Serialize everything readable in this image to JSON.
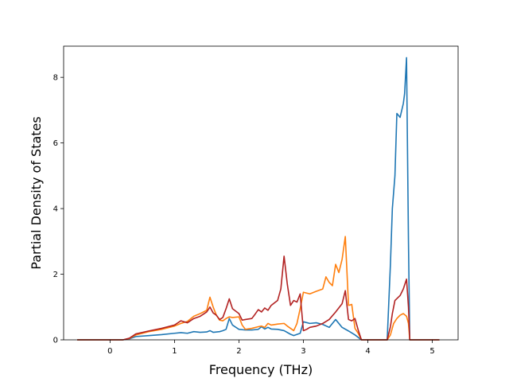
{
  "chart_data": {
    "type": "line",
    "title": "",
    "xlabel": "Frequency (THz)",
    "ylabel": "Partial Density of States",
    "xlim": [
      -0.72,
      5.4
    ],
    "ylim": [
      0,
      8.95
    ],
    "xticks": [
      0,
      1,
      2,
      3,
      4,
      5
    ],
    "yticks": [
      0,
      2,
      4,
      6,
      8
    ],
    "grid": false,
    "legend": "none",
    "series": [
      {
        "color": "#1f77b4",
        "points": [
          [
            -0.5,
            0
          ],
          [
            0.2,
            0
          ],
          [
            0.3,
            0.03
          ],
          [
            0.4,
            0.1
          ],
          [
            0.6,
            0.13
          ],
          [
            0.8,
            0.16
          ],
          [
            1.0,
            0.2
          ],
          [
            1.1,
            0.22
          ],
          [
            1.2,
            0.2
          ],
          [
            1.3,
            0.25
          ],
          [
            1.4,
            0.23
          ],
          [
            1.5,
            0.24
          ],
          [
            1.55,
            0.28
          ],
          [
            1.6,
            0.23
          ],
          [
            1.7,
            0.25
          ],
          [
            1.75,
            0.28
          ],
          [
            1.8,
            0.32
          ],
          [
            1.85,
            0.65
          ],
          [
            1.9,
            0.45
          ],
          [
            2.0,
            0.32
          ],
          [
            2.1,
            0.3
          ],
          [
            2.2,
            0.3
          ],
          [
            2.3,
            0.32
          ],
          [
            2.35,
            0.4
          ],
          [
            2.4,
            0.33
          ],
          [
            2.45,
            0.38
          ],
          [
            2.5,
            0.33
          ],
          [
            2.6,
            0.32
          ],
          [
            2.7,
            0.28
          ],
          [
            2.8,
            0.17
          ],
          [
            2.85,
            0.13
          ],
          [
            2.95,
            0.2
          ],
          [
            3.0,
            0.55
          ],
          [
            3.1,
            0.5
          ],
          [
            3.2,
            0.52
          ],
          [
            3.3,
            0.47
          ],
          [
            3.4,
            0.38
          ],
          [
            3.5,
            0.62
          ],
          [
            3.6,
            0.38
          ],
          [
            3.7,
            0.27
          ],
          [
            3.8,
            0.15
          ],
          [
            3.9,
            0
          ],
          [
            4.3,
            0
          ],
          [
            4.35,
            2.3
          ],
          [
            4.38,
            4.0
          ],
          [
            4.42,
            5.0
          ],
          [
            4.45,
            6.9
          ],
          [
            4.5,
            6.78
          ],
          [
            4.55,
            7.2
          ],
          [
            4.57,
            7.5
          ],
          [
            4.6,
            8.6
          ],
          [
            4.63,
            3.0
          ],
          [
            4.65,
            0
          ],
          [
            5.1,
            0
          ]
        ]
      },
      {
        "color": "#ff7f0e",
        "points": [
          [
            -0.5,
            0
          ],
          [
            0.2,
            0
          ],
          [
            0.3,
            0.04
          ],
          [
            0.4,
            0.15
          ],
          [
            0.6,
            0.25
          ],
          [
            0.8,
            0.32
          ],
          [
            1.0,
            0.42
          ],
          [
            1.1,
            0.5
          ],
          [
            1.2,
            0.56
          ],
          [
            1.3,
            0.72
          ],
          [
            1.4,
            0.8
          ],
          [
            1.5,
            0.9
          ],
          [
            1.55,
            1.3
          ],
          [
            1.6,
            1.0
          ],
          [
            1.65,
            0.75
          ],
          [
            1.7,
            0.6
          ],
          [
            1.75,
            0.58
          ],
          [
            1.8,
            0.65
          ],
          [
            1.85,
            0.7
          ],
          [
            1.9,
            0.68
          ],
          [
            2.0,
            0.7
          ],
          [
            2.05,
            0.45
          ],
          [
            2.1,
            0.32
          ],
          [
            2.2,
            0.35
          ],
          [
            2.3,
            0.4
          ],
          [
            2.35,
            0.42
          ],
          [
            2.4,
            0.38
          ],
          [
            2.45,
            0.5
          ],
          [
            2.5,
            0.45
          ],
          [
            2.6,
            0.48
          ],
          [
            2.7,
            0.5
          ],
          [
            2.75,
            0.42
          ],
          [
            2.8,
            0.35
          ],
          [
            2.85,
            0.28
          ],
          [
            2.9,
            0.5
          ],
          [
            2.95,
            0.95
          ],
          [
            3.0,
            1.45
          ],
          [
            3.1,
            1.4
          ],
          [
            3.2,
            1.48
          ],
          [
            3.3,
            1.55
          ],
          [
            3.35,
            1.92
          ],
          [
            3.4,
            1.75
          ],
          [
            3.45,
            1.65
          ],
          [
            3.5,
            2.3
          ],
          [
            3.55,
            2.05
          ],
          [
            3.6,
            2.45
          ],
          [
            3.65,
            3.15
          ],
          [
            3.7,
            1.05
          ],
          [
            3.75,
            1.08
          ],
          [
            3.8,
            0.35
          ],
          [
            3.85,
            0.2
          ],
          [
            3.9,
            0
          ],
          [
            4.3,
            0
          ],
          [
            4.35,
            0.15
          ],
          [
            4.4,
            0.5
          ],
          [
            4.45,
            0.65
          ],
          [
            4.5,
            0.75
          ],
          [
            4.55,
            0.8
          ],
          [
            4.6,
            0.72
          ],
          [
            4.63,
            0.5
          ],
          [
            4.65,
            0
          ],
          [
            5.1,
            0
          ]
        ]
      },
      {
        "color": "#b22222",
        "points": [
          [
            -0.5,
            0
          ],
          [
            0.2,
            0
          ],
          [
            0.3,
            0.05
          ],
          [
            0.4,
            0.18
          ],
          [
            0.6,
            0.27
          ],
          [
            0.8,
            0.35
          ],
          [
            1.0,
            0.45
          ],
          [
            1.1,
            0.58
          ],
          [
            1.2,
            0.52
          ],
          [
            1.3,
            0.65
          ],
          [
            1.4,
            0.72
          ],
          [
            1.5,
            0.85
          ],
          [
            1.55,
            1.0
          ],
          [
            1.6,
            0.82
          ],
          [
            1.65,
            0.75
          ],
          [
            1.7,
            0.62
          ],
          [
            1.75,
            0.68
          ],
          [
            1.8,
            0.95
          ],
          [
            1.85,
            1.25
          ],
          [
            1.9,
            0.95
          ],
          [
            2.0,
            0.8
          ],
          [
            2.05,
            0.6
          ],
          [
            2.1,
            0.62
          ],
          [
            2.2,
            0.65
          ],
          [
            2.25,
            0.78
          ],
          [
            2.3,
            0.92
          ],
          [
            2.35,
            0.85
          ],
          [
            2.4,
            0.97
          ],
          [
            2.45,
            0.9
          ],
          [
            2.5,
            1.05
          ],
          [
            2.6,
            1.2
          ],
          [
            2.65,
            1.55
          ],
          [
            2.7,
            2.55
          ],
          [
            2.75,
            1.7
          ],
          [
            2.8,
            1.05
          ],
          [
            2.85,
            1.2
          ],
          [
            2.9,
            1.15
          ],
          [
            2.95,
            1.4
          ],
          [
            3.0,
            0.28
          ],
          [
            3.05,
            0.32
          ],
          [
            3.1,
            0.38
          ],
          [
            3.2,
            0.42
          ],
          [
            3.3,
            0.5
          ],
          [
            3.4,
            0.62
          ],
          [
            3.5,
            0.85
          ],
          [
            3.6,
            1.1
          ],
          [
            3.65,
            1.5
          ],
          [
            3.7,
            0.62
          ],
          [
            3.75,
            0.58
          ],
          [
            3.8,
            0.65
          ],
          [
            3.85,
            0.3
          ],
          [
            3.9,
            0
          ],
          [
            4.3,
            0
          ],
          [
            4.35,
            0.4
          ],
          [
            4.38,
            0.8
          ],
          [
            4.42,
            1.2
          ],
          [
            4.5,
            1.35
          ],
          [
            4.55,
            1.55
          ],
          [
            4.6,
            1.85
          ],
          [
            4.63,
            1.0
          ],
          [
            4.65,
            0
          ],
          [
            5.1,
            0
          ]
        ]
      }
    ]
  }
}
